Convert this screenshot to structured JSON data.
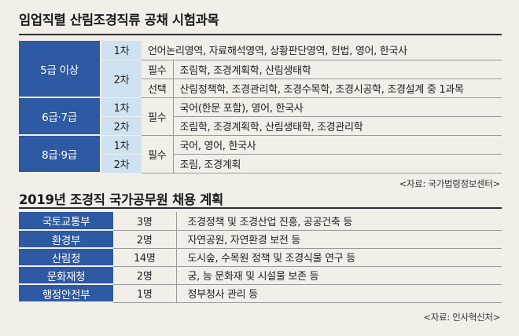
{
  "exam": {
    "title": "임업직렬 산림조경직류 공채 시험과목",
    "rows": [
      {
        "grade": "5급 이상",
        "stage": "1차",
        "kind": "",
        "subjects": "언어논리영역, 자료해석영역, 상황판단영역, 헌법, 영어, 한국사"
      },
      {
        "grade": "",
        "stage": "2차",
        "kind": "필수",
        "subjects": "조림학, 조경계획학, 산림생태학"
      },
      {
        "grade": "",
        "stage": "",
        "kind": "선택",
        "subjects": "산림정책학, 조경관리학, 조경수목학, 조경시공학, 조경설계 중 1과목"
      },
      {
        "grade": "6급·7급",
        "stage": "1차",
        "kind": "필수",
        "subjects": "국어(한문 포함), 영어, 한국사"
      },
      {
        "grade": "",
        "stage": "2차",
        "kind": "",
        "subjects": "조림학, 조경계획학, 산림생태학, 조경관리학"
      },
      {
        "grade": "8급·9급",
        "stage": "1차",
        "kind": "필수",
        "subjects": "국어, 영어, 한국사"
      },
      {
        "grade": "",
        "stage": "2차",
        "kind": "",
        "subjects": "조림, 조경계획"
      }
    ],
    "source": "<자료: 국가법령정보센터>"
  },
  "plan": {
    "title": "2019년 조경직 국가공무원 채용 계획",
    "rows": [
      {
        "ministry": "국토교통부",
        "count": "3명",
        "desc": "조경정책 및 조경산업 진흥, 공공건축 등"
      },
      {
        "ministry": "환경부",
        "count": "2명",
        "desc": "자연공원, 자연환경 보전 등"
      },
      {
        "ministry": "산림청",
        "count": "14명",
        "desc": "도시숲, 수목원 정책 및 조경식물 연구 등"
      },
      {
        "ministry": "문화재청",
        "count": "2명",
        "desc": "궁, 능 문화재 및 시설물 보존 등"
      },
      {
        "ministry": "행정안전부",
        "count": "1명",
        "desc": "정부청사 관리 등"
      }
    ],
    "source": "<자료: 인사혁신처>"
  },
  "colors": {
    "header_blue": "#2e59a3",
    "stage_light_blue": "#cfe2f1",
    "background": "#f2efe9"
  }
}
